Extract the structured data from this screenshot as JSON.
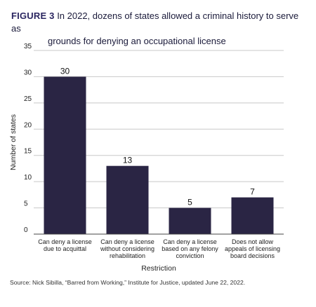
{
  "figure": {
    "label": "FIGURE 3",
    "title_line1": "In 2022, dozens of states allowed a criminal history to serve as",
    "title_line2": "grounds for denying an occupational license"
  },
  "chart_data": {
    "type": "bar",
    "categories": [
      [
        "Can deny a license",
        "due to acquittal"
      ],
      [
        "Can deny a license",
        "without considering",
        "rehabilitation"
      ],
      [
        "Can deny a license",
        "based on any felony",
        "conviction"
      ],
      [
        "Does not allow",
        "appeals of licensing",
        "board decisions"
      ]
    ],
    "values": [
      30,
      13,
      5,
      7
    ],
    "xlabel": "Restriction",
    "ylabel": "Number of states",
    "ylim": [
      0,
      35
    ],
    "yticks": [
      0,
      5,
      10,
      15,
      20,
      25,
      30,
      35
    ],
    "grid": true,
    "bar_color": "#2a2544"
  },
  "source": "Source: Nick Sibilla, “Barred from Working,” Institute for Justice, updated June 22, 2022."
}
